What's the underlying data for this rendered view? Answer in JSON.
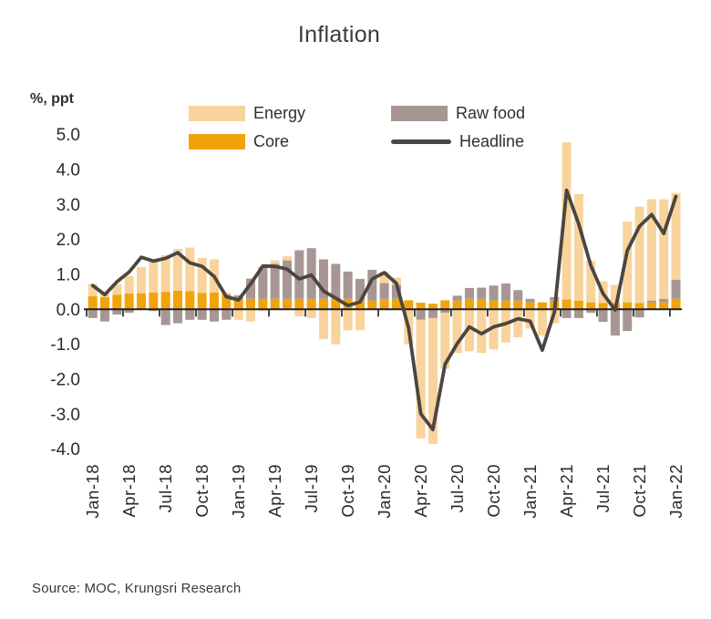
{
  "title": "Inflation",
  "axis_unit_label": "%, ppt",
  "source": "Source:  MOC, Krungsri Research",
  "legend": {
    "items": [
      {
        "label": "Energy",
        "color": "#F8D49C",
        "type": "box"
      },
      {
        "label": "Core",
        "color": "#F2A30B",
        "type": "box"
      },
      {
        "label": "Raw food",
        "color": "#A79693",
        "type": "box"
      },
      {
        "label": "Headline",
        "color": "#4C4540",
        "type": "line"
      }
    ]
  },
  "colors": {
    "energy": "#F8D49C",
    "core": "#F2A30B",
    "raw_food": "#A79693",
    "headline": "#4C4540",
    "axis": "#1f1f1f",
    "tick_text": "#2b2b2b"
  },
  "chart_data": {
    "type": "bar",
    "subtype": "stacked bars with overlay line, monthly Jan-2018 to Jan-2022",
    "title": "Inflation",
    "ylabel": "%, ppt",
    "ylim": [
      -4.0,
      5.0
    ],
    "grid": false,
    "legend_position": "top",
    "yticks": [
      "5.0",
      "4.0",
      "3.0",
      "2.0",
      "1.0",
      "0.0",
      "-1.0",
      "-2.0",
      "-3.0",
      "-4.0"
    ],
    "xtick_labels": [
      "Jan-18",
      "Apr-18",
      "Jul-18",
      "Oct-18",
      "Jan-19",
      "Apr-19",
      "Jul-19",
      "Oct-19",
      "Jan-20",
      "Apr-20",
      "Jul-20",
      "Oct-20",
      "Jan-21",
      "Apr-21",
      "Jul-21",
      "Oct-21",
      "Jan-22"
    ],
    "x": [
      "Jan-18",
      "Feb-18",
      "Mar-18",
      "Apr-18",
      "May-18",
      "Jun-18",
      "Jul-18",
      "Aug-18",
      "Sep-18",
      "Oct-18",
      "Nov-18",
      "Dec-18",
      "Jan-19",
      "Feb-19",
      "Mar-19",
      "Apr-19",
      "May-19",
      "Jun-19",
      "Jul-19",
      "Aug-19",
      "Sep-19",
      "Oct-19",
      "Nov-19",
      "Dec-19",
      "Jan-20",
      "Feb-20",
      "Mar-20",
      "Apr-20",
      "May-20",
      "Jun-20",
      "Jul-20",
      "Aug-20",
      "Sep-20",
      "Oct-20",
      "Nov-20",
      "Dec-20",
      "Jan-21",
      "Feb-21",
      "Mar-21",
      "Apr-21",
      "May-21",
      "Jun-21",
      "Jul-21",
      "Aug-21",
      "Sep-21",
      "Oct-21",
      "Nov-21",
      "Dec-21",
      "Jan-22"
    ],
    "stack_order": [
      "Core",
      "Raw food",
      "Energy"
    ],
    "series": [
      {
        "name": "Core",
        "type": "bar",
        "color": "#F2A30B",
        "values": [
          0.38,
          0.35,
          0.42,
          0.45,
          0.46,
          0.48,
          0.5,
          0.53,
          0.52,
          0.47,
          0.48,
          0.43,
          0.28,
          0.3,
          0.3,
          0.3,
          0.3,
          0.3,
          0.3,
          0.3,
          0.3,
          0.3,
          0.25,
          0.25,
          0.3,
          0.3,
          0.26,
          0.19,
          0.16,
          0.26,
          0.25,
          0.3,
          0.3,
          0.25,
          0.25,
          0.25,
          0.2,
          0.2,
          0.25,
          0.28,
          0.25,
          0.2,
          0.18,
          0.18,
          0.2,
          0.18,
          0.2,
          0.2,
          0.3
        ]
      },
      {
        "name": "Raw food",
        "type": "bar",
        "color": "#A79693",
        "values": [
          -0.25,
          -0.35,
          -0.15,
          -0.1,
          0.0,
          -0.05,
          -0.45,
          -0.4,
          -0.3,
          -0.3,
          -0.35,
          -0.3,
          0.12,
          0.58,
          0.91,
          1.0,
          1.1,
          1.39,
          1.45,
          1.13,
          1.0,
          0.78,
          0.62,
          0.88,
          0.45,
          0.4,
          0.0,
          -0.3,
          -0.25,
          -0.1,
          0.14,
          0.31,
          0.32,
          0.43,
          0.49,
          0.3,
          0.1,
          0.0,
          0.1,
          -0.25,
          -0.25,
          -0.1,
          -0.36,
          -0.75,
          -0.62,
          -0.23,
          0.05,
          0.1,
          0.55
        ]
      },
      {
        "name": "Energy",
        "type": "bar",
        "color": "#F8D49C",
        "values": [
          0.35,
          0.15,
          0.3,
          0.5,
          0.75,
          0.95,
          1.05,
          1.2,
          1.25,
          1.0,
          0.95,
          0.05,
          -0.3,
          -0.35,
          -0.05,
          0.1,
          0.12,
          -0.2,
          -0.25,
          -0.85,
          -1.0,
          -0.6,
          -0.6,
          0.0,
          0.33,
          0.21,
          -1.0,
          -3.4,
          -3.6,
          -1.6,
          -1.25,
          -1.2,
          -1.25,
          -1.15,
          -0.95,
          -0.8,
          -0.55,
          -0.75,
          -0.4,
          4.5,
          3.05,
          1.19,
          0.62,
          0.52,
          2.31,
          2.76,
          2.9,
          2.85,
          2.48
        ]
      },
      {
        "name": "Headline",
        "type": "line",
        "color": "#4C4540",
        "values": [
          0.68,
          0.42,
          0.79,
          1.07,
          1.49,
          1.38,
          1.46,
          1.62,
          1.33,
          1.23,
          0.94,
          0.36,
          0.27,
          0.73,
          1.24,
          1.23,
          1.15,
          0.87,
          0.98,
          0.52,
          0.32,
          0.11,
          0.21,
          0.87,
          1.05,
          0.74,
          -0.54,
          -2.99,
          -3.44,
          -1.57,
          -0.98,
          -0.5,
          -0.7,
          -0.5,
          -0.41,
          -0.27,
          -0.34,
          -1.17,
          -0.08,
          3.41,
          2.44,
          1.25,
          0.45,
          -0.02,
          1.68,
          2.38,
          2.71,
          2.17,
          3.23
        ]
      }
    ]
  }
}
